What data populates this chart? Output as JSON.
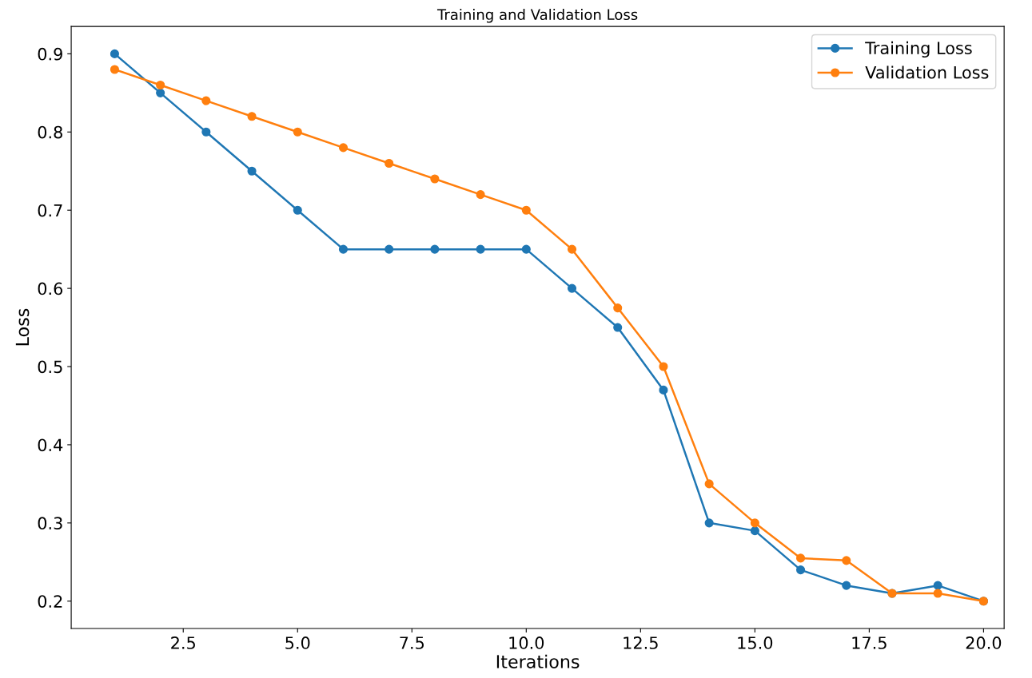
{
  "chart_data": {
    "type": "line",
    "title": "Training and Validation Loss",
    "xlabel": "Iterations",
    "ylabel": "Loss",
    "x": [
      1,
      2,
      3,
      4,
      5,
      6,
      7,
      8,
      9,
      10,
      11,
      12,
      13,
      14,
      15,
      16,
      17,
      18,
      19,
      20
    ],
    "series": [
      {
        "name": "Training Loss",
        "color": "#1f77b4",
        "values": [
          0.9,
          0.85,
          0.8,
          0.75,
          0.7,
          0.65,
          0.65,
          0.65,
          0.65,
          0.65,
          0.6,
          0.55,
          0.47,
          0.3,
          0.29,
          0.24,
          0.22,
          0.21,
          0.22,
          0.2
        ]
      },
      {
        "name": "Validation Loss",
        "color": "#ff7f0e",
        "values": [
          0.88,
          0.86,
          0.84,
          0.82,
          0.8,
          0.78,
          0.76,
          0.74,
          0.72,
          0.7,
          0.65,
          0.575,
          0.5,
          0.35,
          0.3,
          0.255,
          0.252,
          0.21,
          0.21,
          0.2
        ]
      }
    ],
    "xlim": [
      0.05,
      20.45
    ],
    "ylim": [
      0.165,
      0.935
    ],
    "xticks": [
      2.5,
      {
        "value": 5,
        "label": "5.0"
      },
      7.5,
      {
        "value": 10,
        "label": "10.0"
      },
      12.5,
      {
        "value": 15,
        "label": "15.0"
      },
      17.5,
      {
        "value": 20,
        "label": "20.0"
      }
    ],
    "yticks": [
      {
        "value": 0.2,
        "label": "0.2"
      },
      {
        "value": 0.3,
        "label": "0.3"
      },
      {
        "value": 0.4,
        "label": "0.4"
      },
      {
        "value": 0.5,
        "label": "0.5"
      },
      {
        "value": 0.6,
        "label": "0.6"
      },
      {
        "value": 0.7,
        "label": "0.7"
      },
      {
        "value": 0.8,
        "label": "0.8"
      },
      {
        "value": 0.9,
        "label": "0.9"
      }
    ],
    "legend": "top right",
    "marker": "circle",
    "line_style": "solid",
    "grid": false
  }
}
